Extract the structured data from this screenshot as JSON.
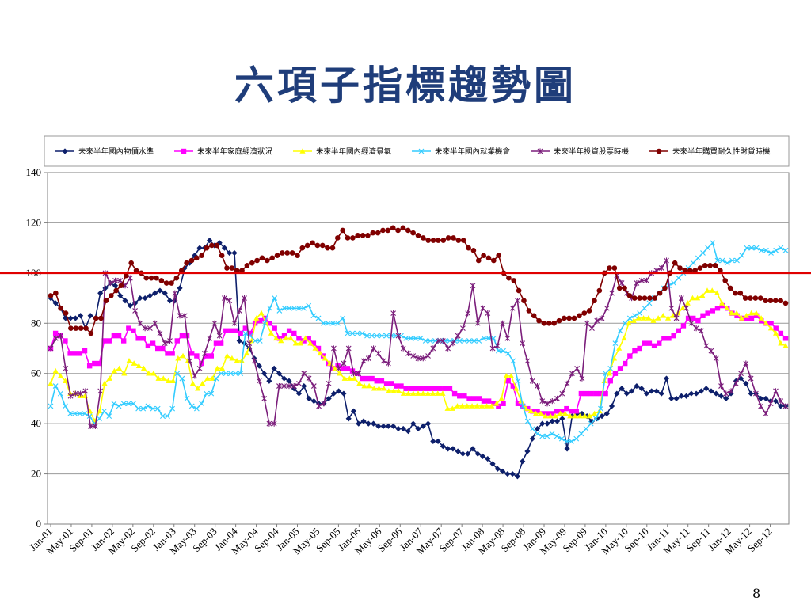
{
  "slide": {
    "title": "六項子指標趨勢圖",
    "page_number": "8"
  },
  "colors": {
    "reference_line": "#e00000",
    "grid": "#999999",
    "axis": "#808080",
    "title": "#1f3d7a"
  },
  "chart_data": {
    "type": "line",
    "title": "",
    "xlabel": "",
    "ylabel": "",
    "ylim": [
      0,
      140
    ],
    "yticks": [
      0,
      20,
      40,
      60,
      80,
      100,
      120,
      140
    ],
    "grid": "horizontal",
    "legend_position": "top",
    "reference_line": 100,
    "x_start": "Jan-01",
    "x_end": "Dec-12",
    "x_tick_labels": [
      "Jan-01",
      "May-01",
      "Sep-01",
      "Jan-02",
      "May-02",
      "Sep-02",
      "Jan-03",
      "May-03",
      "Sep-03",
      "Jan-04",
      "May-04",
      "Sep-04",
      "Jan-05",
      "May-05",
      "Sep-05",
      "Jan-06",
      "May-06",
      "Sep-06",
      "Jan-07",
      "May-07",
      "Sep-07",
      "Jan-08",
      "May-08",
      "Sep-08",
      "Jan-09",
      "May-09",
      "Sep-09",
      "Jan-10",
      "May-10",
      "Sep-10",
      "Jan-11",
      "May-11",
      "Sep-11",
      "Jan-12",
      "May-12",
      "Sep-12"
    ],
    "series": [
      {
        "name": "未來半年國內物價水準",
        "color": "#0d1f6b",
        "marker": "diamond",
        "values": [
          90,
          88,
          86,
          82,
          82,
          82,
          83,
          78,
          83,
          82,
          92,
          94,
          96,
          95,
          91,
          89,
          87,
          88,
          90,
          90,
          91,
          92,
          93,
          92,
          89,
          89,
          94,
          102,
          104,
          107,
          110,
          110,
          113,
          111,
          112,
          110,
          108,
          108,
          73,
          72,
          70,
          66,
          63,
          60,
          57,
          62,
          60,
          58,
          57,
          54,
          52,
          55,
          50,
          49,
          48,
          48,
          50,
          52,
          53,
          52,
          42,
          45,
          40,
          41,
          40,
          40,
          39,
          39,
          39,
          39,
          38,
          38,
          37,
          40,
          38,
          39,
          40,
          33,
          33,
          31,
          30,
          30,
          29,
          28,
          28,
          30,
          28,
          27,
          26,
          24,
          22,
          21,
          20,
          20,
          19,
          25,
          29,
          34,
          38,
          40,
          40,
          41,
          41,
          42,
          30,
          43,
          44,
          44,
          43,
          41,
          42,
          43,
          44,
          47,
          52,
          54,
          52,
          53,
          55,
          54,
          52,
          53,
          53,
          52,
          58,
          50,
          50,
          51,
          51,
          52,
          52,
          53,
          54,
          53,
          52,
          51,
          50,
          52,
          57,
          58,
          56,
          52,
          52,
          50,
          50,
          49,
          49,
          47,
          47
        ]
      },
      {
        "name": "未來半年家庭經濟狀況",
        "color": "#ff00ff",
        "marker": "square",
        "values": [
          70,
          76,
          75,
          73,
          68,
          68,
          68,
          69,
          63,
          64,
          64,
          73,
          73,
          75,
          75,
          73,
          78,
          77,
          74,
          74,
          71,
          72,
          70,
          70,
          68,
          68,
          73,
          75,
          75,
          68,
          67,
          64,
          67,
          67,
          72,
          72,
          77,
          77,
          77,
          76,
          78,
          76,
          80,
          81,
          82,
          80,
          78,
          74,
          75,
          77,
          76,
          74,
          73,
          74,
          72,
          70,
          67,
          64,
          62,
          63,
          62,
          62,
          61,
          60,
          58,
          58,
          58,
          57,
          57,
          56,
          56,
          55,
          55,
          54,
          54,
          54,
          54,
          54,
          54,
          54,
          54,
          54,
          54,
          52,
          51,
          51,
          50,
          50,
          50,
          49,
          49,
          48,
          47,
          48,
          57,
          55,
          48,
          47,
          46,
          45,
          45,
          44,
          44,
          44,
          45,
          45,
          46,
          45,
          45,
          52,
          52,
          52,
          52,
          52,
          52,
          57,
          60,
          62,
          64,
          67,
          69,
          70,
          72,
          72,
          71,
          72,
          74,
          74,
          75,
          77,
          79,
          82,
          82,
          81,
          83,
          84,
          85,
          86,
          87,
          86,
          84,
          83,
          82,
          82,
          82,
          83,
          81,
          80,
          80,
          78,
          76,
          74
        ]
      },
      {
        "name": "未來半年國內經濟景氣",
        "color": "#ffff00",
        "marker": "triangle",
        "values": [
          56,
          61,
          59,
          57,
          52,
          52,
          51,
          51,
          45,
          41,
          45,
          56,
          58,
          61,
          62,
          60,
          65,
          64,
          63,
          62,
          60,
          60,
          58,
          58,
          57,
          57,
          66,
          67,
          65,
          56,
          54,
          56,
          58,
          58,
          62,
          62,
          67,
          66,
          65,
          65,
          68,
          73,
          82,
          84,
          80,
          76,
          74,
          73,
          74,
          74,
          72,
          72,
          74,
          72,
          70,
          68,
          66,
          64,
          62,
          60,
          58,
          58,
          58,
          56,
          55,
          55,
          54,
          54,
          54,
          53,
          53,
          53,
          52,
          52,
          52,
          52,
          52,
          52,
          52,
          52,
          52,
          46,
          46,
          47,
          47,
          47,
          47,
          47,
          47,
          47,
          47,
          48,
          50,
          59,
          59,
          54,
          49,
          46,
          45,
          44,
          44,
          43,
          43,
          43,
          44,
          44,
          43,
          43,
          43,
          43,
          43,
          44,
          45,
          57,
          60,
          66,
          70,
          74,
          80,
          81,
          82,
          82,
          82,
          81,
          82,
          83,
          82,
          83,
          84,
          86,
          88,
          90,
          90,
          91,
          93,
          93,
          92,
          88,
          86,
          84,
          84,
          82,
          83,
          84,
          84,
          82,
          80,
          78,
          76,
          72,
          71
        ]
      },
      {
        "name": "未來半年國內就業機會",
        "color": "#33ccff",
        "marker": "x",
        "values": [
          47,
          55,
          52,
          47,
          44,
          44,
          44,
          44,
          43,
          40,
          42,
          45,
          43,
          48,
          47,
          48,
          48,
          48,
          46,
          46,
          47,
          46,
          46,
          43,
          43,
          46,
          60,
          58,
          50,
          47,
          46,
          48,
          52,
          52,
          58,
          60,
          60,
          60,
          60,
          60,
          76,
          75,
          73,
          73,
          80,
          86,
          90,
          85,
          86,
          86,
          86,
          86,
          86,
          87,
          83,
          82,
          80,
          80,
          80,
          80,
          82,
          76,
          76,
          76,
          76,
          75,
          75,
          75,
          75,
          75,
          75,
          75,
          75,
          74,
          74,
          74,
          74,
          73,
          73,
          73,
          73,
          73,
          73,
          73,
          73,
          73,
          73,
          73,
          73,
          74,
          74,
          74,
          69,
          69,
          68,
          65,
          57,
          47,
          41,
          38,
          36,
          35,
          35,
          36,
          35,
          34,
          33,
          33,
          34,
          36,
          38,
          40,
          42,
          46,
          60,
          62,
          72,
          77,
          80,
          82,
          83,
          84,
          86,
          88,
          90,
          92,
          94,
          95,
          96,
          98,
          100,
          102,
          104,
          106,
          108,
          110,
          112,
          105,
          105,
          104,
          105,
          105,
          107,
          110,
          110,
          110,
          109,
          109,
          108,
          109,
          110,
          109
        ]
      },
      {
        "name": "未來半年投資股票時機",
        "color": "#7b1e7b",
        "marker": "star",
        "values": [
          70,
          74,
          75,
          62,
          51,
          52,
          52,
          53,
          39,
          39,
          53,
          100,
          96,
          97,
          97,
          95,
          98,
          85,
          80,
          78,
          78,
          80,
          76,
          72,
          73,
          92,
          83,
          83,
          65,
          59,
          62,
          68,
          74,
          80,
          75,
          90,
          89,
          80,
          85,
          90,
          72,
          65,
          57,
          50,
          40,
          40,
          55,
          55,
          55,
          55,
          56,
          60,
          58,
          55,
          47,
          48,
          56,
          70,
          62,
          64,
          70,
          60,
          60,
          65,
          66,
          70,
          68,
          65,
          64,
          84,
          75,
          70,
          68,
          67,
          66,
          66,
          67,
          70,
          73,
          73,
          70,
          72,
          75,
          78,
          84,
          95,
          80,
          86,
          84,
          70,
          71,
          80,
          74,
          86,
          89,
          72,
          65,
          57,
          55,
          49,
          48,
          49,
          50,
          52,
          56,
          60,
          62,
          58,
          80,
          78,
          81,
          82,
          86,
          92,
          99,
          96,
          92,
          90,
          96,
          97,
          97,
          100,
          101,
          102,
          105,
          86,
          82,
          90,
          86,
          80,
          78,
          77,
          71,
          69,
          66,
          55,
          52,
          53,
          56,
          60,
          64,
          58,
          52,
          47,
          44,
          48,
          53,
          49,
          47
        ]
      },
      {
        "name": "未來半年購買耐久性財貨時機",
        "color": "#800000",
        "marker": "circle",
        "values": [
          91,
          92,
          86,
          84,
          78,
          78,
          78,
          78,
          76,
          82,
          82,
          89,
          91,
          93,
          95,
          99,
          104,
          101,
          100,
          98,
          98,
          98,
          97,
          96,
          96,
          98,
          101,
          104,
          105,
          106,
          107,
          110,
          111,
          111,
          107,
          102,
          102,
          101,
          101,
          103,
          104,
          105,
          106,
          105,
          106,
          107,
          108,
          108,
          108,
          107,
          110,
          111,
          112,
          111,
          111,
          110,
          110,
          114,
          117,
          114,
          114,
          115,
          115,
          115,
          116,
          116,
          117,
          117,
          118,
          117,
          118,
          117,
          116,
          115,
          114,
          113,
          113,
          113,
          113,
          114,
          114,
          113,
          113,
          110,
          109,
          105,
          107,
          106,
          105,
          107,
          100,
          98,
          97,
          93,
          89,
          85,
          83,
          81,
          80,
          80,
          80,
          81,
          82,
          82,
          82,
          83,
          84,
          85,
          89,
          93,
          100,
          102,
          102,
          94,
          94,
          91,
          90,
          90,
          90,
          90,
          90,
          92,
          94,
          100,
          104,
          102,
          101,
          101,
          101,
          102,
          103,
          103,
          103,
          101,
          97,
          94,
          92,
          92,
          90,
          90,
          90,
          90,
          89,
          89,
          89,
          89,
          88
        ]
      }
    ]
  }
}
